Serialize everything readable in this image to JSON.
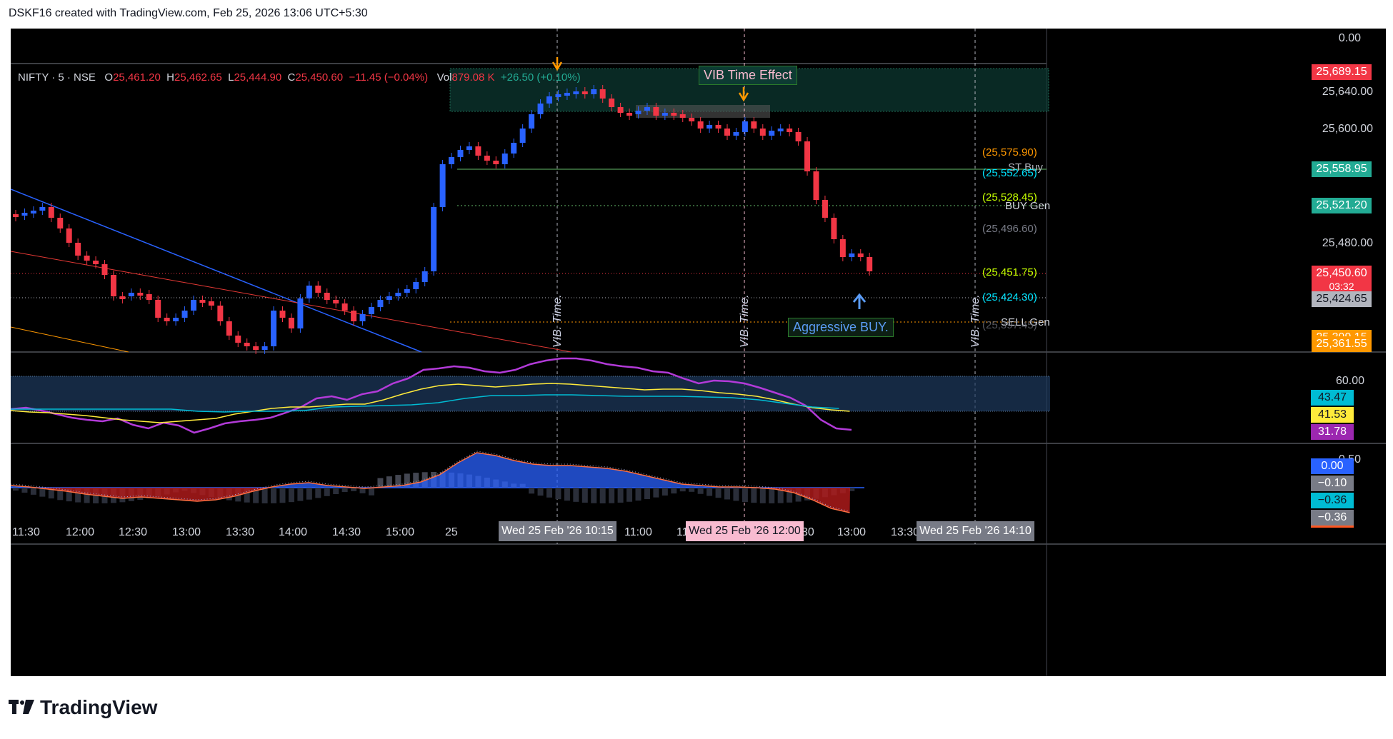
{
  "header": {
    "text": "DSKF16 created with TradingView.com, Feb 25, 2026 13:06 UTC+5:30"
  },
  "ohlc": {
    "symbol": "NIFTY · 5 · NSE",
    "o_label": "O",
    "o": "25,461.20",
    "h_label": "H",
    "h": "25,462.65",
    "l_label": "L",
    "l": "25,444.90",
    "c_label": "C",
    "c": "25,450.60",
    "change": "−11.45 (−0.04%)",
    "vol_label": "Vol",
    "vol": "879.08 K",
    "vol_change": "+26.50 (+0.10%)"
  },
  "price_axis": [
    "0.00",
    "25,640.00",
    "25,600.00",
    "25,480.00",
    "60.00",
    "0.50"
  ],
  "price_tags": [
    {
      "text": "25,689.15",
      "color": "#f23645"
    },
    {
      "text": "25,558.95",
      "color": "#22ab94"
    },
    {
      "text": "25,521.20",
      "color": "#22ab94"
    },
    {
      "text": "25,450.60",
      "color": "#f23645"
    },
    {
      "text": "03:32",
      "color": "#f23645"
    },
    {
      "text": "25,424.65",
      "color": "#b2b5be"
    },
    {
      "text": "25,399.15",
      "color": "#ff9800"
    },
    {
      "text": "25,361.55",
      "color": "#ff9800"
    },
    {
      "text": "43.47",
      "color": "#00bcd4"
    },
    {
      "text": "41.53",
      "color": "#ffeb3b"
    },
    {
      "text": "31.78",
      "color": "#9c27b0"
    },
    {
      "text": "0.00",
      "color": "#2962ff"
    },
    {
      "text": "−0.10",
      "color": "#787b86"
    },
    {
      "text": "−0.36",
      "color": "#00bcd4"
    },
    {
      "text": "−0.36",
      "color": "#787b86"
    }
  ],
  "levels": [
    {
      "text": "(25,575.90)",
      "color": "#ff9800"
    },
    {
      "text": "ST Buy",
      "color": "#b2b5be"
    },
    {
      "text": "(25,552.65)",
      "color": "#00e5ff"
    },
    {
      "text": "(25,528.45)",
      "color": "#c6ff00"
    },
    {
      "text": "BUY Gen",
      "color": "#d1d4dc"
    },
    {
      "text": "(25,496.60)",
      "color": "#787b86"
    },
    {
      "text": "(25,451.75)",
      "color": "#c6ff00"
    },
    {
      "text": "(25,424.30)",
      "color": "#00e5ff"
    },
    {
      "text": "SELL Gen",
      "color": "#d1d4dc"
    },
    {
      "text": "(25,397.45)",
      "color": "#787b86"
    }
  ],
  "annotations": {
    "vib_time_effect": "VIB Time Effect",
    "aggressive_buy": "Aggressive BUY.",
    "vib_time": "VIB. Time."
  },
  "time_axis": [
    "11:30",
    "12:00",
    "12:30",
    "13:00",
    "13:30",
    "14:00",
    "14:30",
    "15:00",
    "25",
    "11:00",
    "11",
    "30",
    "13:00",
    "13:30"
  ],
  "time_tags": [
    {
      "text": "Wed 25 Feb '26   10:15",
      "color": "#787b86"
    },
    {
      "text": "Wed 25 Feb '26   12:00",
      "color": "#f8bbd0"
    },
    {
      "text": "Wed 25 Feb '26   14:10",
      "color": "#787b86"
    }
  ],
  "logo": {
    "text": "TradingView"
  }
}
